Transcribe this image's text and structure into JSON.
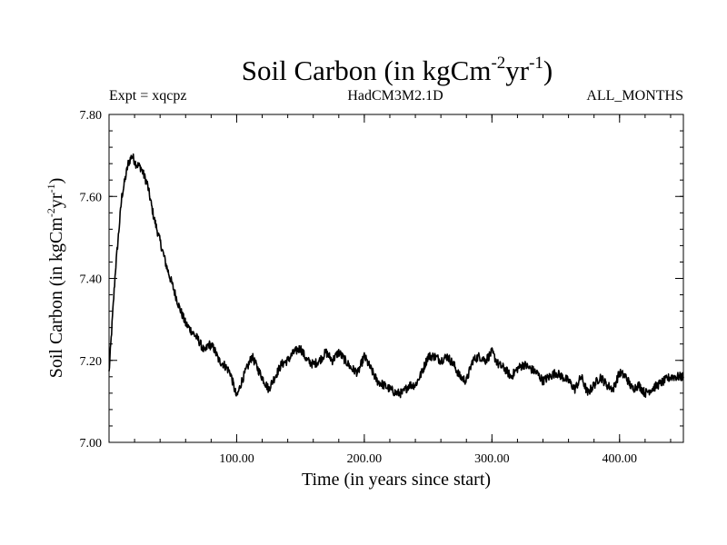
{
  "chart_data": {
    "type": "line",
    "title_main": "Soil Carbon (in kgCm",
    "title_sup1": "-2",
    "title_mid": "yr",
    "title_sup2": "-1",
    "title_end": ")",
    "left_label": "Expt = xqcpz",
    "center_label": "HadCM3M2.1D",
    "right_label": "ALL_MONTHS",
    "xlabel": "Time (in years since start)",
    "ylabel_main": "Soil Carbon (in kgCm",
    "ylabel_sup1": "-2",
    "ylabel_mid": "yr",
    "ylabel_sup2": "-1",
    "ylabel_end": ")",
    "xlim": [
      0,
      450
    ],
    "ylim": [
      7.0,
      7.8
    ],
    "x_ticks": [
      100,
      200,
      300,
      400
    ],
    "x_tick_labels": [
      "100.00",
      "200.00",
      "300.00",
      "400.00"
    ],
    "y_ticks": [
      7.0,
      7.2,
      7.4,
      7.6,
      7.8
    ],
    "y_tick_labels": [
      "7.00",
      "7.20",
      "7.40",
      "7.60",
      "7.80"
    ],
    "x_minor_step": 20,
    "y_minor_step": 0.04,
    "series": [
      {
        "name": "Soil Carbon",
        "x": [
          0,
          5,
          10,
          15,
          18,
          21,
          25,
          30,
          35,
          40,
          45,
          50,
          55,
          60,
          65,
          70,
          75,
          78,
          82,
          86,
          90,
          95,
          100,
          104,
          108,
          112,
          118,
          125,
          130,
          135,
          140,
          145,
          150,
          155,
          160,
          165,
          170,
          175,
          180,
          185,
          190,
          195,
          200,
          205,
          210,
          215,
          220,
          225,
          230,
          235,
          240,
          245,
          250,
          255,
          260,
          265,
          270,
          275,
          280,
          285,
          290,
          295,
          300,
          305,
          310,
          315,
          320,
          325,
          330,
          335,
          340,
          345,
          350,
          355,
          360,
          365,
          370,
          375,
          380,
          385,
          390,
          395,
          400,
          405,
          410,
          415,
          420,
          425,
          430,
          435,
          440,
          445,
          450
        ],
        "y": [
          7.17,
          7.42,
          7.6,
          7.68,
          7.7,
          7.68,
          7.67,
          7.63,
          7.55,
          7.49,
          7.43,
          7.38,
          7.33,
          7.29,
          7.27,
          7.25,
          7.22,
          7.24,
          7.23,
          7.2,
          7.19,
          7.17,
          7.11,
          7.15,
          7.18,
          7.21,
          7.17,
          7.13,
          7.16,
          7.19,
          7.2,
          7.22,
          7.23,
          7.2,
          7.19,
          7.2,
          7.22,
          7.2,
          7.22,
          7.2,
          7.18,
          7.17,
          7.21,
          7.18,
          7.15,
          7.14,
          7.13,
          7.12,
          7.12,
          7.14,
          7.14,
          7.17,
          7.21,
          7.21,
          7.2,
          7.21,
          7.19,
          7.16,
          7.15,
          7.2,
          7.21,
          7.2,
          7.22,
          7.19,
          7.18,
          7.16,
          7.18,
          7.19,
          7.18,
          7.17,
          7.15,
          7.16,
          7.17,
          7.16,
          7.15,
          7.13,
          7.16,
          7.12,
          7.14,
          7.16,
          7.14,
          7.13,
          7.17,
          7.16,
          7.13,
          7.14,
          7.12,
          7.13,
          7.14,
          7.15,
          7.16,
          7.16,
          7.16
        ]
      }
    ]
  }
}
